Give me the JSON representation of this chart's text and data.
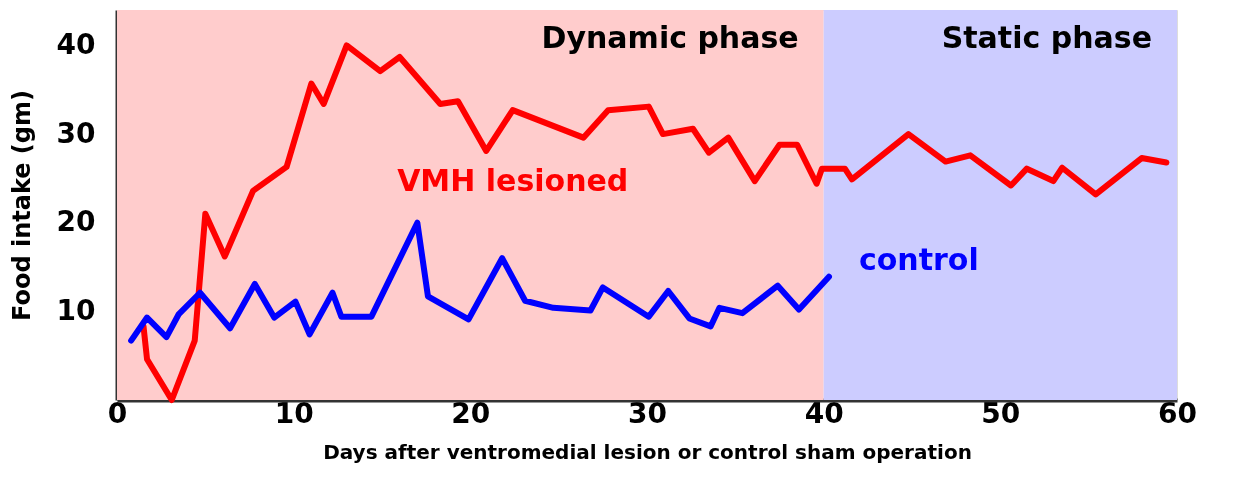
{
  "chart_data": {
    "type": "line",
    "xlabel": "Days after ventromedial lesion or control sham operation",
    "ylabel": "Food intake (gm)",
    "xlim": [
      0,
      60
    ],
    "xticks": [
      0,
      10,
      20,
      30,
      40,
      50,
      60
    ],
    "ylim": [
      0,
      44
    ],
    "yticks": [
      10,
      20,
      30,
      40
    ],
    "grid": false,
    "legend": false,
    "marker": "none",
    "line_style": "solid",
    "series": [
      {
        "name": "VMH lesioned",
        "color": "#ff0000",
        "x": [
          1.5,
          1.7,
          3.1,
          4.4,
          5.0,
          6.1,
          7.7,
          9.6,
          11.0,
          11.7,
          13.0,
          14.9,
          16.0,
          18.3,
          19.3,
          20.9,
          22.4,
          26.4,
          27.8,
          30.1,
          30.9,
          32.6,
          33.5,
          34.6,
          36.1,
          37.5,
          38.5,
          39.6,
          39.9,
          41.2,
          41.6,
          44.8,
          46.9,
          48.3,
          50.6,
          51.5,
          53.0,
          53.5,
          55.4,
          58.0,
          59.4
        ],
        "values": [
          8.3,
          4.6,
          0,
          6.7,
          21.0,
          16.2,
          23.6,
          26.3,
          35.7,
          33.4,
          40.0,
          37.1,
          38.7,
          33.4,
          33.7,
          28.1,
          32.7,
          29.6,
          32.7,
          33.1,
          30.0,
          30.6,
          27.9,
          29.6,
          24.7,
          28.8,
          28.8,
          24.4,
          26.1,
          26.1,
          24.9,
          30.0,
          26.9,
          27.6,
          24.2,
          26.1,
          24.7,
          26.2,
          23.2,
          27.3,
          26.8
        ]
      },
      {
        "name": "control",
        "color": "#0000ff",
        "x": [
          0.8,
          1.7,
          2.8,
          3.5,
          4.7,
          6.4,
          7.8,
          8.9,
          10.1,
          10.9,
          12.2,
          12.7,
          14.4,
          17.0,
          17.6,
          19.9,
          21.8,
          23.1,
          24.7,
          26.8,
          27.5,
          30.1,
          31.2,
          32.4,
          33.6,
          34.1,
          35.4,
          37.4,
          38.6,
          40.3
        ],
        "values": [
          6.7,
          9.3,
          7.1,
          9.7,
          12.1,
          8.1,
          13.1,
          9.3,
          11.1,
          7.4,
          12.1,
          9.4,
          9.4,
          20.0,
          11.7,
          9.1,
          16.0,
          11.2,
          10.4,
          10.1,
          12.7,
          9.4,
          12.3,
          9.2,
          8.3,
          10.4,
          9.8,
          12.9,
          10.2,
          13.9
        ]
      }
    ],
    "bands": [
      {
        "axis": "x",
        "from": 0,
        "to": 40,
        "label": "Dynamic phase",
        "color": "#ffcccc"
      },
      {
        "axis": "x",
        "from": 40,
        "to": 60,
        "label": "Static phase",
        "color": "#ccccff"
      }
    ]
  }
}
